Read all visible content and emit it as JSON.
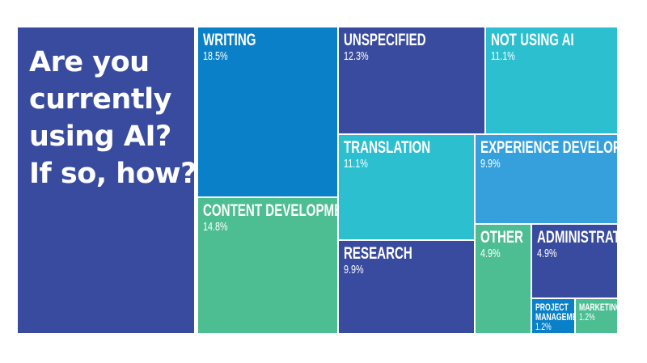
{
  "chart_data": {
    "type": "treemap",
    "title": "Are you currently using AI? If so, how?",
    "unit": "%",
    "items": [
      {
        "label": "WRITING",
        "value": 18.5,
        "display": "18.5%",
        "color": "#0a80c8"
      },
      {
        "label": "CONTENT DEVELOPMENT",
        "value": 14.8,
        "display": "14.8%",
        "color": "#4dbd92"
      },
      {
        "label": "UNSPECIFIED",
        "value": 12.3,
        "display": "12.3%",
        "color": "#394b9e"
      },
      {
        "label": "NOT USING AI",
        "value": 11.1,
        "display": "11.1%",
        "color": "#2bbfd0"
      },
      {
        "label": "TRANSLATION",
        "value": 11.1,
        "display": "11.1%",
        "color": "#2bbfd0"
      },
      {
        "label": "RESEARCH",
        "value": 9.9,
        "display": "9.9%",
        "color": "#394b9e"
      },
      {
        "label": "EXPERIENCE DEVELOPMENT",
        "value": 9.9,
        "display": "9.9%",
        "color": "#35a0dc"
      },
      {
        "label": "OTHER",
        "value": 4.9,
        "display": "4.9%",
        "color": "#4dbd92"
      },
      {
        "label": "ADMINISTRATIVE",
        "value": 4.9,
        "display": "4.9%",
        "color": "#394b9e"
      },
      {
        "label": "PROJECT MANAGEMENT",
        "value": 1.2,
        "display": "1.2%",
        "color": "#0a80c8"
      },
      {
        "label": "MARKETING",
        "value": 1.2,
        "display": "1.2%",
        "color": "#4dbd92"
      }
    ]
  }
}
